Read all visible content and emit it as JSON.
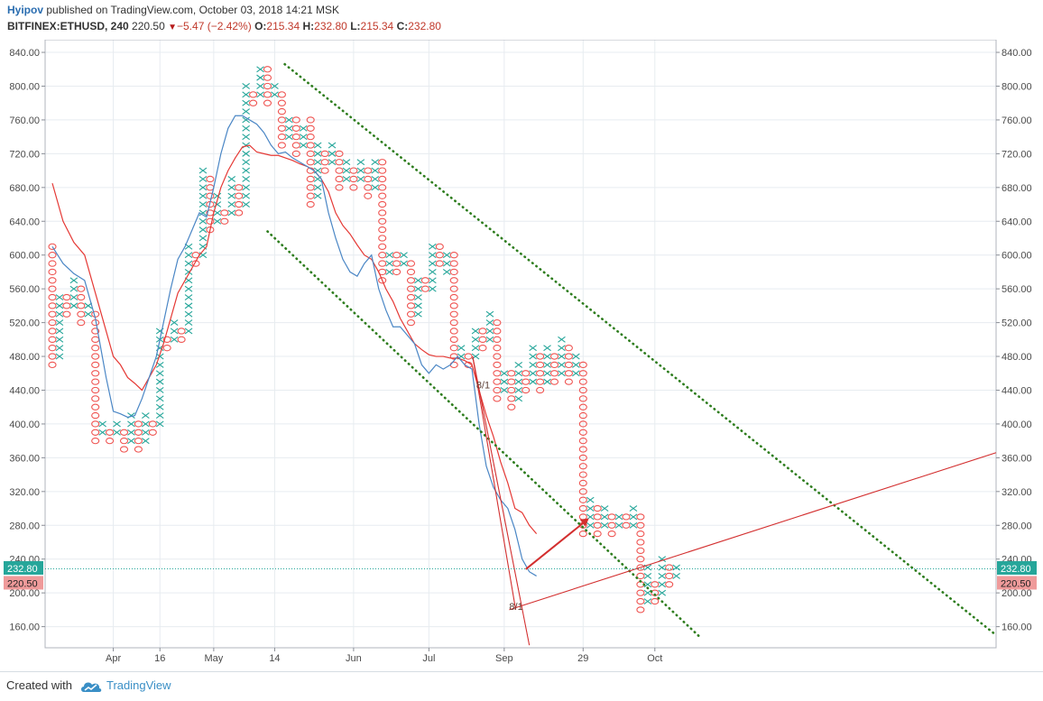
{
  "header": {
    "author": "Hyipov",
    "published": "published on TradingView.com, October 03, 2018 14:21 MSK",
    "symbol": "BITFINEX:ETHUSD, 240",
    "last": "220.50",
    "change": "−5.47 (−2.42%)",
    "o_label": "O:",
    "o": "215.34",
    "h_label": "H:",
    "h": "232.80",
    "l_label": "L:",
    "l": "215.34",
    "c_label": "C:",
    "c": "232.80"
  },
  "footer": {
    "created_with": "Created with",
    "brand": "TradingView"
  },
  "chart_data": {
    "type": "point-and-figure",
    "symbol": "BITFINEX:ETHUSD",
    "box_size": 10,
    "y_ticks": [
      "160.00",
      "200.00",
      "240.00",
      "280.00",
      "320.00",
      "360.00",
      "400.00",
      "440.00",
      "480.00",
      "520.00",
      "560.00",
      "600.00",
      "640.00",
      "680.00",
      "720.00",
      "760.00",
      "800.00",
      "840.00"
    ],
    "ylim": [
      135,
      855
    ],
    "x_ticks": [
      {
        "label": "Apr",
        "x": 8.5
      },
      {
        "label": "16",
        "x": 15
      },
      {
        "label": "May",
        "x": 22.5
      },
      {
        "label": "14",
        "x": 31
      },
      {
        "label": "Jun",
        "x": 42
      },
      {
        "label": "Jul",
        "x": 52.5
      },
      {
        "label": "Sep",
        "x": 63
      },
      {
        "label": "29",
        "x": 74
      },
      {
        "label": "Oct",
        "x": 84
      }
    ],
    "xlim": [
      0,
      90
    ],
    "columns": [
      {
        "type": "O",
        "from": 470,
        "to": 610
      },
      {
        "type": "X",
        "from": 480,
        "to": 550
      },
      {
        "type": "O",
        "from": 530,
        "to": 550
      },
      {
        "type": "X",
        "from": 540,
        "to": 570
      },
      {
        "type": "O",
        "from": 520,
        "to": 560
      },
      {
        "type": "X",
        "from": 530,
        "to": 540
      },
      {
        "type": "O",
        "from": 380,
        "to": 530
      },
      {
        "type": "X",
        "from": 390,
        "to": 400
      },
      {
        "type": "O",
        "from": 380,
        "to": 390
      },
      {
        "type": "X",
        "from": 390,
        "to": 400
      },
      {
        "type": "O",
        "from": 370,
        "to": 390
      },
      {
        "type": "X",
        "from": 380,
        "to": 410
      },
      {
        "type": "O",
        "from": 370,
        "to": 400
      },
      {
        "type": "X",
        "from": 380,
        "to": 410
      },
      {
        "type": "O",
        "from": 390,
        "to": 400
      },
      {
        "type": "X",
        "from": 400,
        "to": 510
      },
      {
        "type": "O",
        "from": 490,
        "to": 500
      },
      {
        "type": "X",
        "from": 500,
        "to": 520
      },
      {
        "type": "O",
        "from": 500,
        "to": 510
      },
      {
        "type": "X",
        "from": 510,
        "to": 610
      },
      {
        "type": "O",
        "from": 590,
        "to": 600
      },
      {
        "type": "X",
        "from": 600,
        "to": 700
      },
      {
        "type": "O",
        "from": 630,
        "to": 690
      },
      {
        "type": "X",
        "from": 640,
        "to": 670
      },
      {
        "type": "O",
        "from": 640,
        "to": 650
      },
      {
        "type": "X",
        "from": 650,
        "to": 690
      },
      {
        "type": "O",
        "from": 650,
        "to": 680
      },
      {
        "type": "X",
        "from": 660,
        "to": 800
      },
      {
        "type": "O",
        "from": 780,
        "to": 790
      },
      {
        "type": "X",
        "from": 790,
        "to": 820
      },
      {
        "type": "O",
        "from": 780,
        "to": 820
      },
      {
        "type": "X",
        "from": 790,
        "to": 800
      },
      {
        "type": "O",
        "from": 730,
        "to": 790
      },
      {
        "type": "X",
        "from": 740,
        "to": 760
      },
      {
        "type": "O",
        "from": 720,
        "to": 760
      },
      {
        "type": "X",
        "from": 730,
        "to": 750
      },
      {
        "type": "O",
        "from": 660,
        "to": 760
      },
      {
        "type": "X",
        "from": 670,
        "to": 730
      },
      {
        "type": "O",
        "from": 700,
        "to": 720
      },
      {
        "type": "X",
        "from": 710,
        "to": 730
      },
      {
        "type": "O",
        "from": 680,
        "to": 720
      },
      {
        "type": "X",
        "from": 690,
        "to": 710
      },
      {
        "type": "O",
        "from": 680,
        "to": 700
      },
      {
        "type": "X",
        "from": 690,
        "to": 710
      },
      {
        "type": "O",
        "from": 670,
        "to": 700
      },
      {
        "type": "X",
        "from": 680,
        "to": 710
      },
      {
        "type": "O",
        "from": 570,
        "to": 710
      },
      {
        "type": "X",
        "from": 580,
        "to": 600
      },
      {
        "type": "O",
        "from": 580,
        "to": 600
      },
      {
        "type": "X",
        "from": 590,
        "to": 600
      },
      {
        "type": "O",
        "from": 520,
        "to": 590
      },
      {
        "type": "X",
        "from": 530,
        "to": 570
      },
      {
        "type": "O",
        "from": 560,
        "to": 570
      },
      {
        "type": "X",
        "from": 560,
        "to": 610
      },
      {
        "type": "O",
        "from": 590,
        "to": 610
      },
      {
        "type": "X",
        "from": 580,
        "to": 600
      },
      {
        "type": "O",
        "from": 470,
        "to": 600
      },
      {
        "type": "X",
        "from": 480,
        "to": 490
      },
      {
        "type": "O",
        "from": 470,
        "to": 480
      },
      {
        "type": "X",
        "from": 480,
        "to": 510
      },
      {
        "type": "O",
        "from": 490,
        "to": 510
      },
      {
        "type": "X",
        "from": 500,
        "to": 530
      },
      {
        "type": "O",
        "from": 430,
        "to": 520
      },
      {
        "type": "X",
        "from": 440,
        "to": 460
      },
      {
        "type": "O",
        "from": 420,
        "to": 460
      },
      {
        "type": "X",
        "from": 430,
        "to": 470
      },
      {
        "type": "O",
        "from": 440,
        "to": 460
      },
      {
        "type": "X",
        "from": 450,
        "to": 490
      },
      {
        "type": "O",
        "from": 440,
        "to": 480
      },
      {
        "type": "X",
        "from": 450,
        "to": 490
      },
      {
        "type": "O",
        "from": 450,
        "to": 480
      },
      {
        "type": "X",
        "from": 460,
        "to": 500
      },
      {
        "type": "O",
        "from": 450,
        "to": 490
      },
      {
        "type": "X",
        "from": 460,
        "to": 480
      },
      {
        "type": "O",
        "from": 270,
        "to": 470
      },
      {
        "type": "X",
        "from": 280,
        "to": 310
      },
      {
        "type": "O",
        "from": 270,
        "to": 300
      },
      {
        "type": "X",
        "from": 280,
        "to": 300
      },
      {
        "type": "O",
        "from": 270,
        "to": 290
      },
      {
        "type": "X",
        "from": 280,
        "to": 290
      },
      {
        "type": "O",
        "from": 280,
        "to": 290
      },
      {
        "type": "X",
        "from": 280,
        "to": 300
      },
      {
        "type": "O",
        "from": 180,
        "to": 290
      },
      {
        "type": "X",
        "from": 190,
        "to": 230
      },
      {
        "type": "O",
        "from": 190,
        "to": 210
      },
      {
        "type": "X",
        "from": 200,
        "to": 240
      },
      {
        "type": "O",
        "from": 210,
        "to": 230
      },
      {
        "type": "X",
        "from": 220,
        "to": 230
      }
    ],
    "ma_fast": [
      [
        0,
        610
      ],
      [
        1.5,
        590
      ],
      [
        3,
        578
      ],
      [
        4.5,
        570
      ],
      [
        6,
        525
      ],
      [
        7.5,
        455
      ],
      [
        8.5,
        415
      ],
      [
        9.5,
        412
      ],
      [
        10.5,
        408
      ],
      [
        11.5,
        410
      ],
      [
        12.5,
        430
      ],
      [
        13.5,
        455
      ],
      [
        14.5,
        480
      ],
      [
        15.5,
        520
      ],
      [
        16.5,
        560
      ],
      [
        17.5,
        595
      ],
      [
        18.5,
        610
      ],
      [
        19.5,
        630
      ],
      [
        20.5,
        650
      ],
      [
        21.5,
        645
      ],
      [
        22.5,
        680
      ],
      [
        23.5,
        720
      ],
      [
        24.5,
        750
      ],
      [
        25.5,
        765
      ],
      [
        26.5,
        765
      ],
      [
        27.5,
        760
      ],
      [
        28.5,
        755
      ],
      [
        29.5,
        745
      ],
      [
        30.5,
        730
      ],
      [
        31.5,
        720
      ],
      [
        32.5,
        722
      ],
      [
        33.5,
        715
      ],
      [
        34.5,
        710
      ],
      [
        35.5,
        705
      ],
      [
        36.5,
        700
      ],
      [
        37.5,
        690
      ],
      [
        38.5,
        650
      ],
      [
        39.5,
        620
      ],
      [
        40.5,
        595
      ],
      [
        41.5,
        580
      ],
      [
        42.5,
        575
      ],
      [
        43.5,
        590
      ],
      [
        44.5,
        600
      ],
      [
        45.5,
        560
      ],
      [
        46.5,
        535
      ],
      [
        47.5,
        515
      ],
      [
        48.5,
        515
      ],
      [
        49.5,
        505
      ],
      [
        50.5,
        495
      ],
      [
        51.5,
        470
      ],
      [
        52.5,
        460
      ],
      [
        53.5,
        470
      ],
      [
        54.5,
        465
      ],
      [
        55.5,
        470
      ],
      [
        56.5,
        480
      ],
      [
        57.5,
        470
      ],
      [
        58.5,
        465
      ],
      [
        59.5,
        400
      ],
      [
        60.5,
        350
      ],
      [
        61.5,
        325
      ],
      [
        62.5,
        310
      ],
      [
        63.5,
        300
      ],
      [
        64.5,
        275
      ],
      [
        65.5,
        240
      ],
      [
        66.5,
        225
      ],
      [
        67.5,
        220
      ]
    ],
    "ma_slow": [
      [
        0,
        685
      ],
      [
        1.5,
        640
      ],
      [
        3,
        615
      ],
      [
        4.5,
        600
      ],
      [
        6,
        555
      ],
      [
        7.5,
        510
      ],
      [
        8.5,
        480
      ],
      [
        9.5,
        470
      ],
      [
        10.5,
        455
      ],
      [
        11.5,
        448
      ],
      [
        12.5,
        440
      ],
      [
        13.5,
        455
      ],
      [
        14.5,
        470
      ],
      [
        15.5,
        495
      ],
      [
        16.5,
        525
      ],
      [
        17.5,
        555
      ],
      [
        18.5,
        570
      ],
      [
        19.5,
        585
      ],
      [
        20.5,
        600
      ],
      [
        21.5,
        610
      ],
      [
        22.5,
        650
      ],
      [
        23.5,
        680
      ],
      [
        24.5,
        700
      ],
      [
        25.5,
        715
      ],
      [
        26.5,
        728
      ],
      [
        27.5,
        730
      ],
      [
        28.5,
        722
      ],
      [
        29.5,
        720
      ],
      [
        30.5,
        718
      ],
      [
        31.5,
        718
      ],
      [
        32.5,
        715
      ],
      [
        33.5,
        712
      ],
      [
        34.5,
        708
      ],
      [
        35.5,
        705
      ],
      [
        36.5,
        700
      ],
      [
        37.5,
        690
      ],
      [
        38.5,
        675
      ],
      [
        39.5,
        650
      ],
      [
        40.5,
        635
      ],
      [
        41.5,
        625
      ],
      [
        42.5,
        612
      ],
      [
        43.5,
        600
      ],
      [
        44.5,
        595
      ],
      [
        45.5,
        580
      ],
      [
        46.5,
        560
      ],
      [
        47.5,
        545
      ],
      [
        48.5,
        525
      ],
      [
        49.5,
        510
      ],
      [
        50.5,
        495
      ],
      [
        51.5,
        488
      ],
      [
        52.5,
        482
      ],
      [
        53.5,
        480
      ],
      [
        54.5,
        480
      ],
      [
        55.5,
        478
      ],
      [
        56.5,
        478
      ],
      [
        57.5,
        475
      ],
      [
        58.5,
        470
      ],
      [
        59.5,
        440
      ],
      [
        60.5,
        410
      ],
      [
        61.5,
        385
      ],
      [
        62.5,
        355
      ],
      [
        63.5,
        330
      ],
      [
        64.5,
        300
      ],
      [
        65.5,
        295
      ],
      [
        66.5,
        280
      ],
      [
        67.5,
        270
      ]
    ],
    "price_line": 228.5,
    "price_tags": [
      {
        "text": "232.80",
        "bg": "#26a69a",
        "fg": "#ffffff"
      },
      {
        "text": "220.50",
        "bg": "#ef9a9a",
        "fg": "#222222"
      }
    ],
    "annotations": [
      {
        "text": "8/1",
        "x": 59.1,
        "y": 442
      },
      {
        "text": "8/1",
        "x": 63.7,
        "y": 180
      }
    ],
    "colors": {
      "x": "#26a69a",
      "o": "#ef5350",
      "ma_fast": "#4a86c5",
      "ma_slow": "#e53935",
      "trend": "#2e7d1e",
      "red_line": "#d32f2f",
      "price_line": "#26a69a",
      "grid": "#e7ecf0"
    }
  }
}
